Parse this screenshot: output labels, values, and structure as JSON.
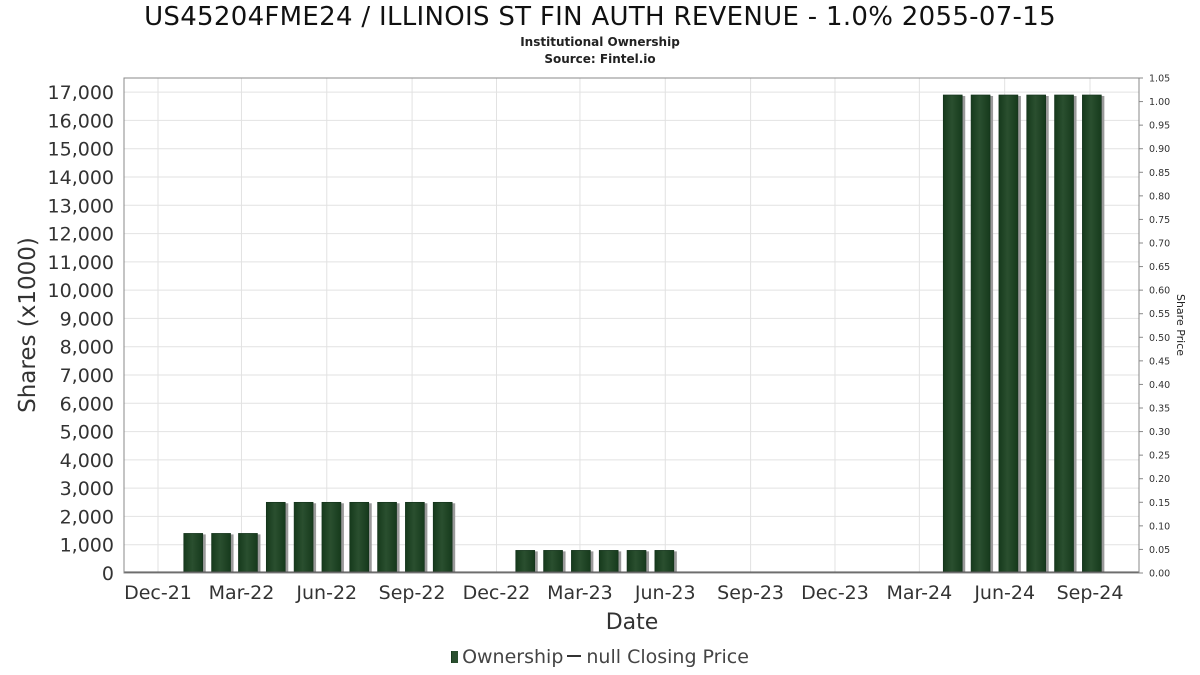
{
  "header": {
    "title": "US45204FME24 / ILLINOIS ST FIN AUTH REVENUE - 1.0% 2055-07-15",
    "subtitle1": "Institutional Ownership",
    "subtitle2": "Source: Fintel.io"
  },
  "legend": {
    "ownership": "Ownership",
    "price": "null Closing Price"
  },
  "chart_data": {
    "type": "bar",
    "xlabel": "Date",
    "ylabel": "Shares (x1000)",
    "y2label": "Share Price",
    "ylim": [
      0,
      17500
    ],
    "y2lim": [
      0,
      1.05
    ],
    "grid": true,
    "legend_position": "bottom",
    "xticks": [
      "Dec-21",
      "Mar-22",
      "Jun-22",
      "Sep-22",
      "Dec-22",
      "Mar-23",
      "Jun-23",
      "Sep-23",
      "Dec-23",
      "Mar-24",
      "Jun-24",
      "Sep-24"
    ],
    "yticks": [
      "0",
      "1,000",
      "2,000",
      "3,000",
      "4,000",
      "5,000",
      "6,000",
      "7,000",
      "8,000",
      "9,000",
      "10,000",
      "11,000",
      "12,000",
      "13,000",
      "14,000",
      "15,000",
      "16,000",
      "17,000"
    ],
    "y2ticks": [
      "0.00",
      "0.05",
      "0.10",
      "0.15",
      "0.20",
      "0.25",
      "0.30",
      "0.35",
      "0.40",
      "0.45",
      "0.50",
      "0.55",
      "0.60",
      "0.65",
      "0.70",
      "0.75",
      "0.80",
      "0.85",
      "0.90",
      "0.95",
      "1.00",
      "1.05"
    ],
    "colors": {
      "bar": "#2a4f2f",
      "bar_dark": "#163a1c",
      "bar_shadow": "#9a9a9a",
      "grid": "#e2e2e2"
    },
    "series": [
      {
        "name": "Ownership",
        "x": [
          "2022-01-08",
          "2022-02-07",
          "2022-03-08",
          "2022-04-07",
          "2022-05-07",
          "2022-06-06",
          "2022-07-06",
          "2022-08-05",
          "2022-09-04",
          "2022-10-04",
          "2023-01-01",
          "2023-01-31",
          "2023-03-02",
          "2023-04-01",
          "2023-05-01",
          "2023-05-31",
          "2024-04-06",
          "2024-05-06",
          "2024-06-05",
          "2024-07-05",
          "2024-08-04",
          "2024-09-03"
        ],
        "values": [
          1400,
          1400,
          1400,
          2500,
          2500,
          2500,
          2500,
          2500,
          2500,
          2500,
          800,
          800,
          800,
          800,
          800,
          800,
          16900,
          16900,
          16900,
          16900,
          16900,
          16900
        ]
      }
    ]
  }
}
